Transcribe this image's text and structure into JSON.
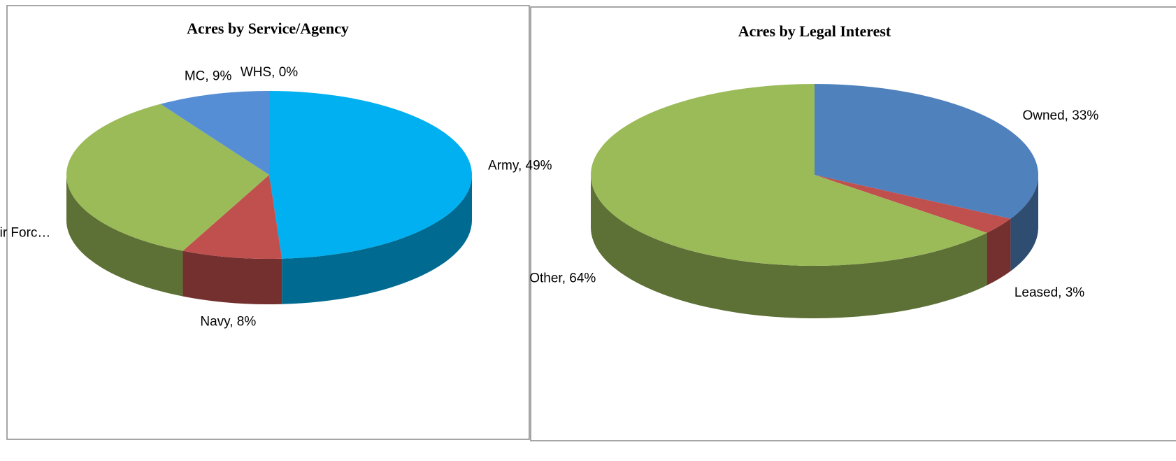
{
  "chart_data": [
    {
      "type": "pie3d",
      "title": "Acres by Service/Agency",
      "categories": [
        "Army, 49%",
        "Navy, 8%",
        "Air Forc…",
        "MC, 9%",
        "WHS, 0%"
      ],
      "values": [
        49,
        8,
        34,
        9,
        0
      ],
      "colors": [
        "#00b0f0",
        "#c0504d",
        "#9bbb59",
        "#558ed5",
        "#8064a2"
      ]
    },
    {
      "type": "pie3d",
      "title": "Acres by Legal Interest",
      "categories": [
        "Owned, 33%",
        "Leased, 3%",
        "Other, 64%"
      ],
      "values": [
        33,
        3,
        64
      ],
      "colors": [
        "#4f81bd",
        "#c0504d",
        "#9bbb59"
      ]
    }
  ]
}
